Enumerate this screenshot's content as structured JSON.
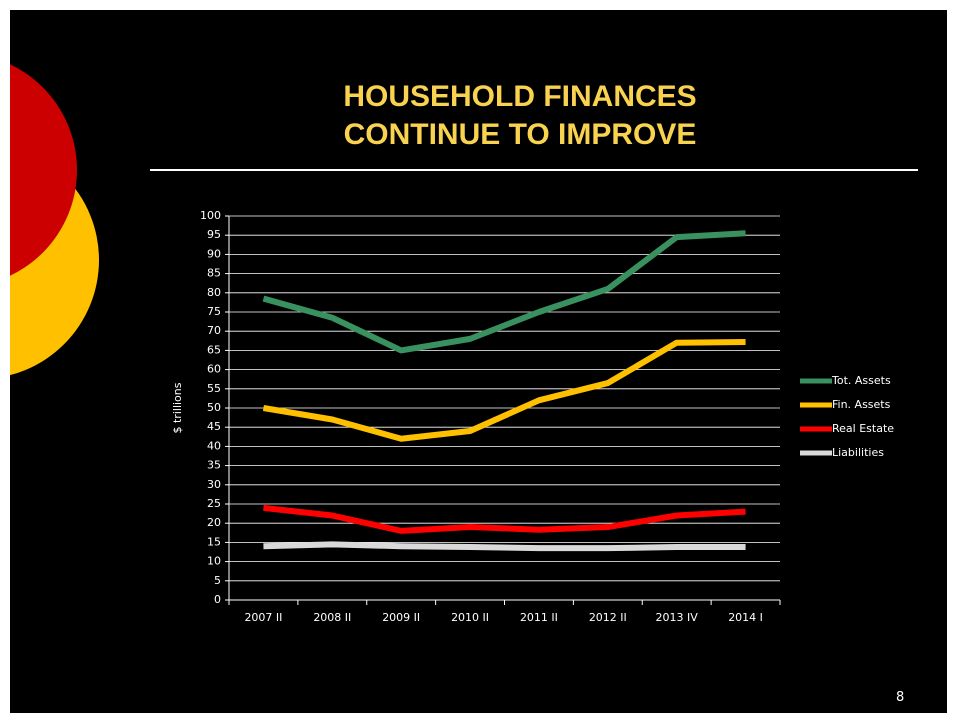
{
  "chart_data": {
    "type": "line",
    "title": "HOUSEHOLD FINANCES CONTINUE TO IMPROVE",
    "y_label": "$ trillions",
    "categories": [
      "2007 II",
      "2008 II",
      "2009 II",
      "2010 II",
      "2011 II",
      "2012 II",
      "2013 IV",
      "2014 I"
    ],
    "series": [
      {
        "name": "Tot. Assets",
        "color": "#3a9160",
        "values": [
          78.5,
          73.5,
          65,
          68,
          75,
          81,
          94.5,
          95.5
        ]
      },
      {
        "name": "Fin. Assets",
        "color": "#ffc000",
        "values": [
          50,
          47,
          42,
          44,
          52,
          56.5,
          67,
          67.2
        ]
      },
      {
        "name": "Real Estate",
        "color": "#ff0000",
        "values": [
          24,
          22,
          18,
          19,
          18.3,
          19,
          22,
          23
        ]
      },
      {
        "name": "Liabilities",
        "color": "#d9d9d9",
        "values": [
          14,
          14.5,
          14,
          13.8,
          13.5,
          13.5,
          13.8,
          13.8
        ]
      }
    ],
    "ylim": [
      0,
      100
    ],
    "yticks": [
      0,
      5,
      10,
      15,
      20,
      25,
      30,
      35,
      40,
      45,
      50,
      55,
      60,
      65,
      70,
      75,
      80,
      85,
      90,
      95,
      100
    ],
    "grid": true,
    "legend": "right"
  },
  "slide_number": 8
}
